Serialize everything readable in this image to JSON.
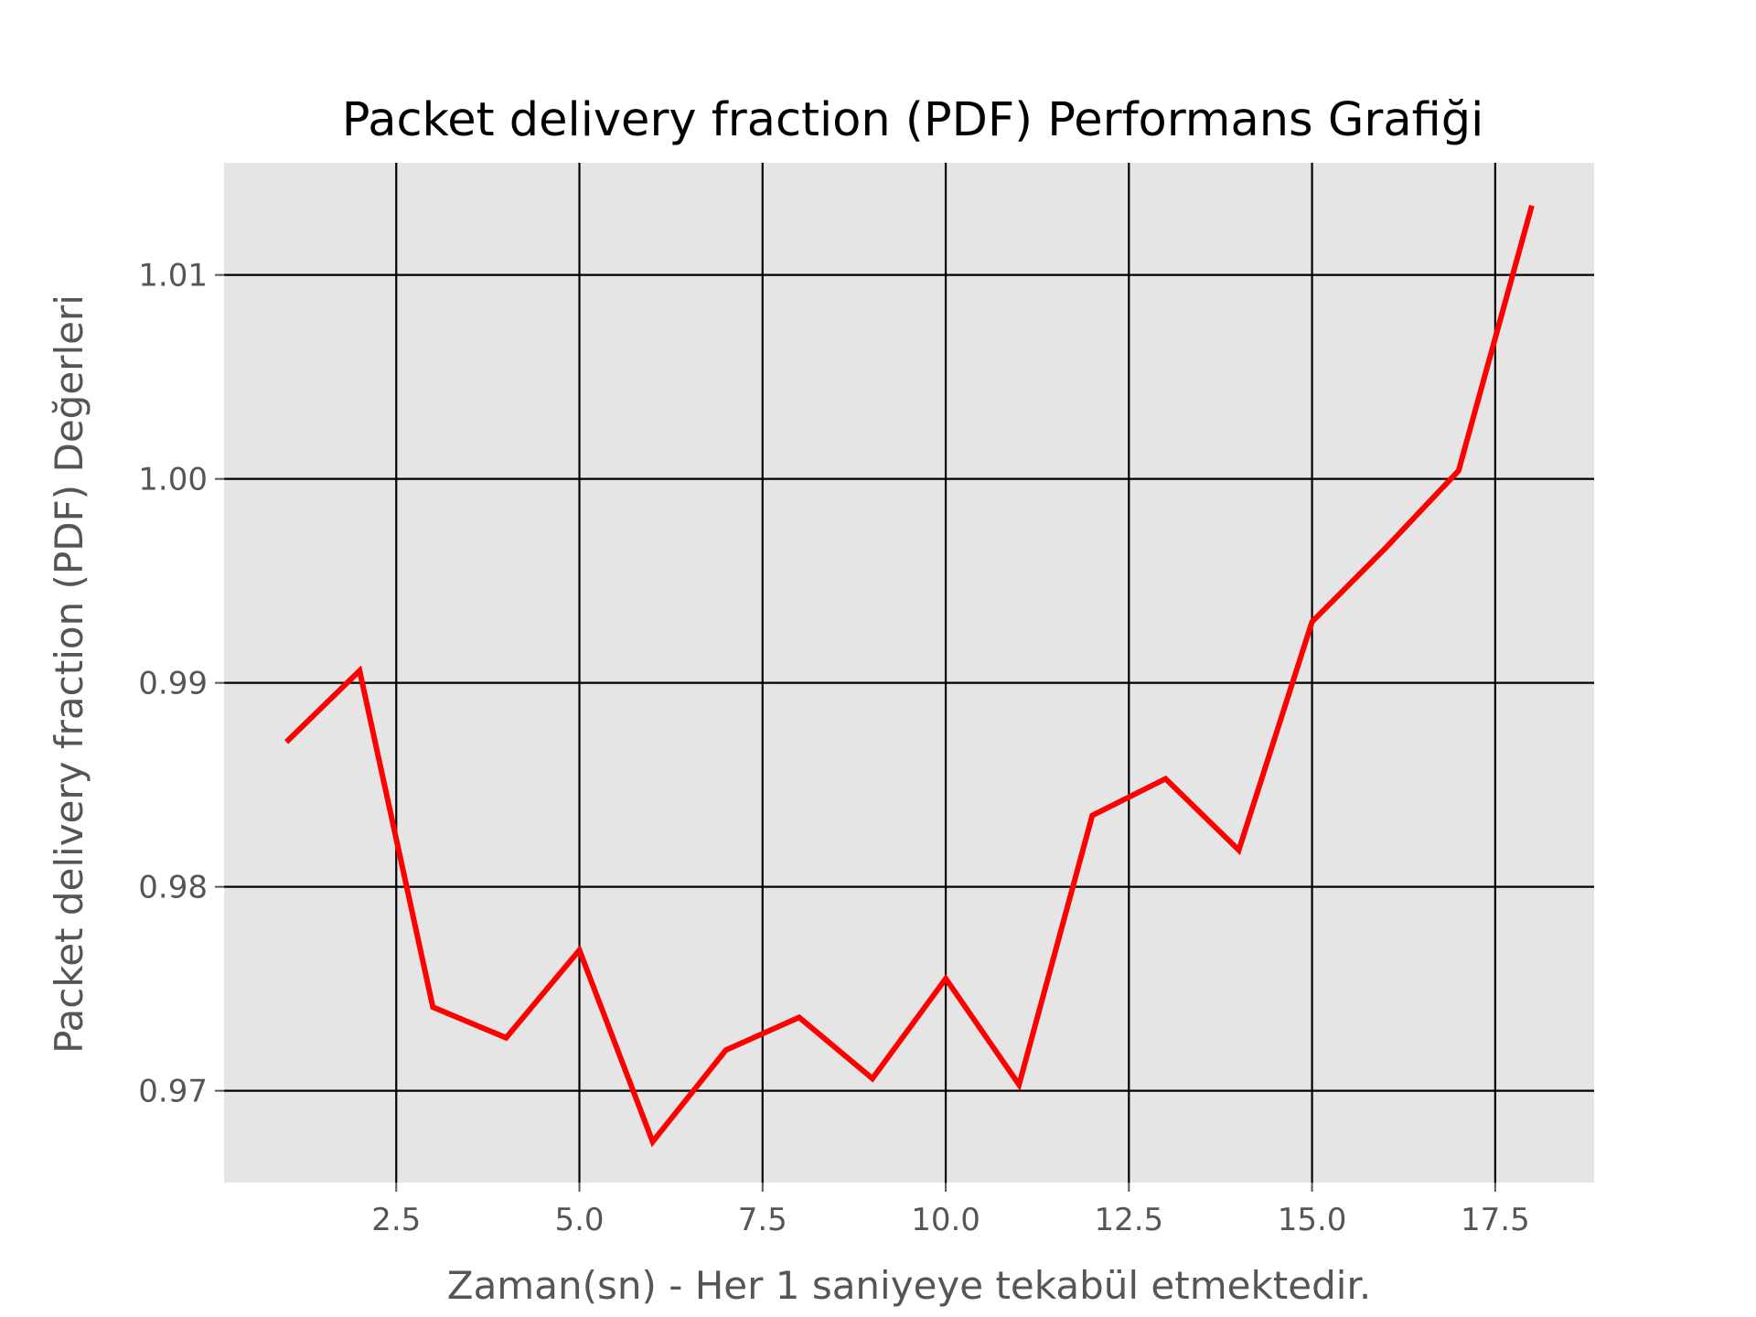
{
  "chart_data": {
    "type": "line",
    "title": "Packet delivery fraction (PDF) Performans Grafiği",
    "xlabel": "Zaman(sn) - Her 1 saniyeye tekabül etmektedir.",
    "ylabel": "Packet delivery fraction (PDF) Değerleri",
    "xlim": [
      0.15,
      18.85
    ],
    "ylim": [
      0.9655,
      1.0155
    ],
    "x_ticks": [
      2.5,
      5.0,
      7.5,
      10.0,
      12.5,
      15.0,
      17.5
    ],
    "x_tick_labels": [
      "2.5",
      "5.0",
      "7.5",
      "10.0",
      "12.5",
      "15.0",
      "17.5"
    ],
    "y_ticks": [
      0.97,
      0.98,
      0.99,
      1.0,
      1.01
    ],
    "y_tick_labels": [
      "0.97",
      "0.98",
      "0.99",
      "1.00",
      "1.01"
    ],
    "grid": true,
    "series": [
      {
        "color": "#ff0000",
        "x": [
          1,
          2,
          3,
          4,
          5,
          6,
          7,
          8,
          9,
          10,
          11,
          12,
          13,
          14,
          15,
          16,
          17,
          18
        ],
        "y": [
          0.9871,
          0.9906,
          0.9741,
          0.9726,
          0.9769,
          0.9675,
          0.972,
          0.9736,
          0.9706,
          0.9755,
          0.9703,
          0.9835,
          0.9853,
          0.9818,
          0.993,
          0.9966,
          1.0004,
          1.0134
        ]
      }
    ]
  },
  "colors": {
    "plot_background": "#e5e5e5",
    "grid": "#000000",
    "line": "#ff0000"
  }
}
